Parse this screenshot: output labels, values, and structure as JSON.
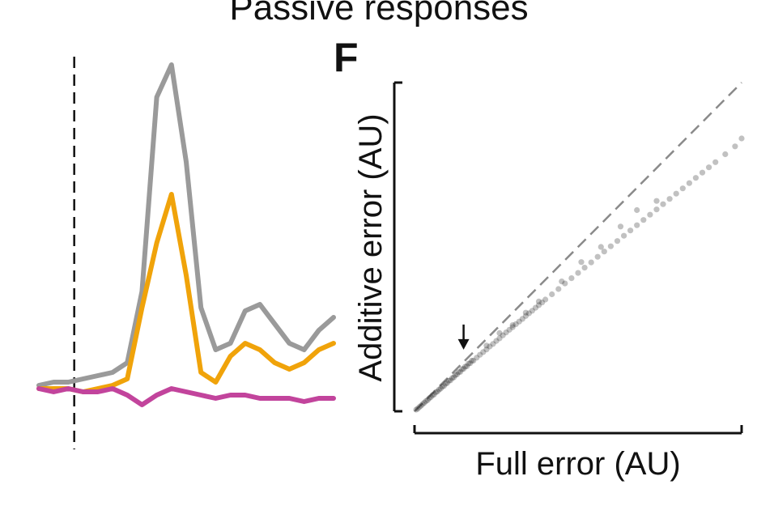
{
  "figure": {
    "title": "Passive responses",
    "panel_letter": "F"
  },
  "chart_data": [
    {
      "type": "line",
      "title": "",
      "xlabel": "",
      "ylabel": "",
      "grid": false,
      "x": [
        0,
        0.05,
        0.1,
        0.15,
        0.2,
        0.25,
        0.3,
        0.35,
        0.4,
        0.45,
        0.5,
        0.55,
        0.6,
        0.65,
        0.7,
        0.75,
        0.8,
        0.85,
        0.9,
        0.95,
        1.0
      ],
      "xlim": [
        0,
        1
      ],
      "ylim": [
        -0.15,
        1.05
      ],
      "stimulus_onset_x": 0.12,
      "colors": [
        "#9a9a9a",
        "#f0a30a",
        "#c2449c"
      ],
      "series": [
        {
          "values": [
            0.01,
            0.02,
            0.02,
            0.03,
            0.04,
            0.05,
            0.08,
            0.3,
            0.9,
            1.0,
            0.7,
            0.25,
            0.12,
            0.14,
            0.24,
            0.26,
            0.2,
            0.14,
            0.12,
            0.18,
            0.22
          ]
        },
        {
          "values": [
            0.0,
            0.0,
            0.0,
            -0.01,
            0.0,
            0.01,
            0.03,
            0.25,
            0.45,
            0.6,
            0.35,
            0.05,
            0.02,
            0.1,
            0.14,
            0.12,
            0.08,
            0.06,
            0.08,
            0.12,
            0.14
          ]
        },
        {
          "values": [
            0.0,
            -0.01,
            0.0,
            -0.01,
            -0.01,
            0.0,
            -0.02,
            -0.05,
            -0.02,
            0.0,
            -0.01,
            -0.02,
            -0.03,
            -0.02,
            -0.02,
            -0.03,
            -0.03,
            -0.03,
            -0.04,
            -0.03,
            -0.03
          ]
        }
      ]
    },
    {
      "type": "scatter",
      "title": "",
      "xlabel": "Full error (AU)",
      "ylabel": "Additive error (AU)",
      "grid": false,
      "xlim": [
        0,
        1
      ],
      "ylim": [
        0,
        1
      ],
      "identity_line": true,
      "point_color": "#222222",
      "arrow_annotation": {
        "x": 0.15,
        "y": 0.19
      },
      "x": [
        0.005,
        0.015,
        0.025,
        0.035,
        0.045,
        0.055,
        0.065,
        0.075,
        0.085,
        0.095,
        0.105,
        0.115,
        0.125,
        0.135,
        0.145,
        0.155,
        0.165,
        0.175,
        0.01,
        0.02,
        0.03,
        0.04,
        0.05,
        0.06,
        0.07,
        0.08,
        0.09,
        0.1,
        0.11,
        0.12,
        0.13,
        0.14,
        0.15,
        0.16,
        0.17,
        0.18,
        0.19,
        0.2,
        0.21,
        0.22,
        0.23,
        0.24,
        0.25,
        0.26,
        0.27,
        0.28,
        0.29,
        0.3,
        0.31,
        0.32,
        0.33,
        0.34,
        0.35,
        0.36,
        0.37,
        0.38,
        0.39,
        0.4,
        0.42,
        0.44,
        0.46,
        0.48,
        0.5,
        0.52,
        0.54,
        0.56,
        0.58,
        0.6,
        0.62,
        0.64,
        0.66,
        0.68,
        0.7,
        0.72,
        0.74,
        0.76,
        0.78,
        0.8,
        0.82,
        0.84,
        0.86,
        0.88,
        0.9,
        0.92,
        0.95,
        0.98,
        1.0,
        0.22,
        0.26,
        0.3,
        0.34,
        0.38,
        0.45,
        0.51,
        0.57,
        0.63,
        0.68,
        0.74
      ],
      "y": [
        0.005,
        0.013,
        0.022,
        0.031,
        0.04,
        0.049,
        0.058,
        0.066,
        0.075,
        0.084,
        0.093,
        0.101,
        0.11,
        0.119,
        0.128,
        0.136,
        0.145,
        0.154,
        0.008,
        0.017,
        0.026,
        0.034,
        0.043,
        0.051,
        0.06,
        0.069,
        0.077,
        0.086,
        0.094,
        0.103,
        0.112,
        0.12,
        0.129,
        0.137,
        0.146,
        0.154,
        0.163,
        0.172,
        0.18,
        0.188,
        0.197,
        0.205,
        0.214,
        0.222,
        0.231,
        0.24,
        0.248,
        0.256,
        0.265,
        0.273,
        0.281,
        0.29,
        0.298,
        0.306,
        0.315,
        0.323,
        0.331,
        0.34,
        0.356,
        0.372,
        0.389,
        0.405,
        0.421,
        0.437,
        0.453,
        0.47,
        0.486,
        0.502,
        0.518,
        0.534,
        0.55,
        0.566,
        0.582,
        0.598,
        0.614,
        0.63,
        0.646,
        0.662,
        0.678,
        0.694,
        0.71,
        0.726,
        0.742,
        0.758,
        0.782,
        0.806,
        0.83,
        0.2,
        0.238,
        0.262,
        0.3,
        0.334,
        0.395,
        0.454,
        0.5,
        0.562,
        0.612,
        0.64
      ]
    }
  ]
}
